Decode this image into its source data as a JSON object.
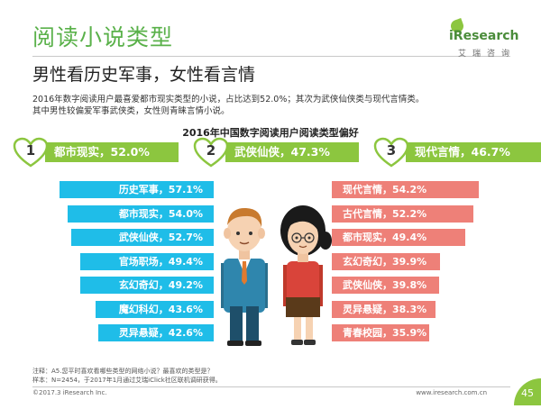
{
  "header": {
    "title": "阅读小说类型",
    "logo_brand": "iResearch",
    "logo_sub": "艾瑞咨询"
  },
  "subtitle": "男性看历史军事，女性看言情",
  "description": [
    "2016年数字阅读用户最喜爱都市现实类型的小说，占比达到52.0%；其次为武侠仙侠类与现代言情类。",
    "其中男性较偏爱军事武侠类，女性则青睐言情小说。"
  ],
  "colors": {
    "green": "#5ab14a",
    "male": "#1fbde8",
    "female": "#ee8078",
    "header": "#8cc63f"
  },
  "chart_data": {
    "type": "bar",
    "title": "2016年中国数字阅读用户阅读类型偏好",
    "top3": [
      {
        "rank": "1",
        "label": "都市现实，52.0%",
        "value": 52.0
      },
      {
        "rank": "2",
        "label": "武侠仙侠，47.3%",
        "value": 47.3
      },
      {
        "rank": "3",
        "label": "现代言情，46.7%",
        "value": 46.7
      }
    ],
    "male": [
      {
        "label": "历史军事，57.1%",
        "value": 57.1
      },
      {
        "label": "都市现实，54.0%",
        "value": 54.0
      },
      {
        "label": "武侠仙侠，52.7%",
        "value": 52.7
      },
      {
        "label": "官场职场，49.4%",
        "value": 49.4
      },
      {
        "label": "玄幻奇幻，49.2%",
        "value": 49.2
      },
      {
        "label": "魔幻科幻，43.6%",
        "value": 43.6
      },
      {
        "label": "灵异悬疑，42.6%",
        "value": 42.6
      }
    ],
    "female": [
      {
        "label": "现代言情，54.2%",
        "value": 54.2
      },
      {
        "label": "古代言情，52.2%",
        "value": 52.2
      },
      {
        "label": "都市现实，49.4%",
        "value": 49.4
      },
      {
        "label": "玄幻奇幻，39.9%",
        "value": 39.9
      },
      {
        "label": "武侠仙侠，39.8%",
        "value": 39.8
      },
      {
        "label": "灵异悬疑，38.3%",
        "value": 38.3
      },
      {
        "label": "青春校园，35.9%",
        "value": 35.9
      }
    ]
  },
  "footer": {
    "note1": "注释：A5.您平时喜欢看哪些类型的网络小说？最喜欢的类型是？",
    "note2": "样本：N=2454，于2017年1月通过艾瑞iClick社区联机调研获得。",
    "copyright": "©2017.3 iResearch Inc.",
    "website": "www.iresearch.com.cn",
    "page": "45"
  }
}
